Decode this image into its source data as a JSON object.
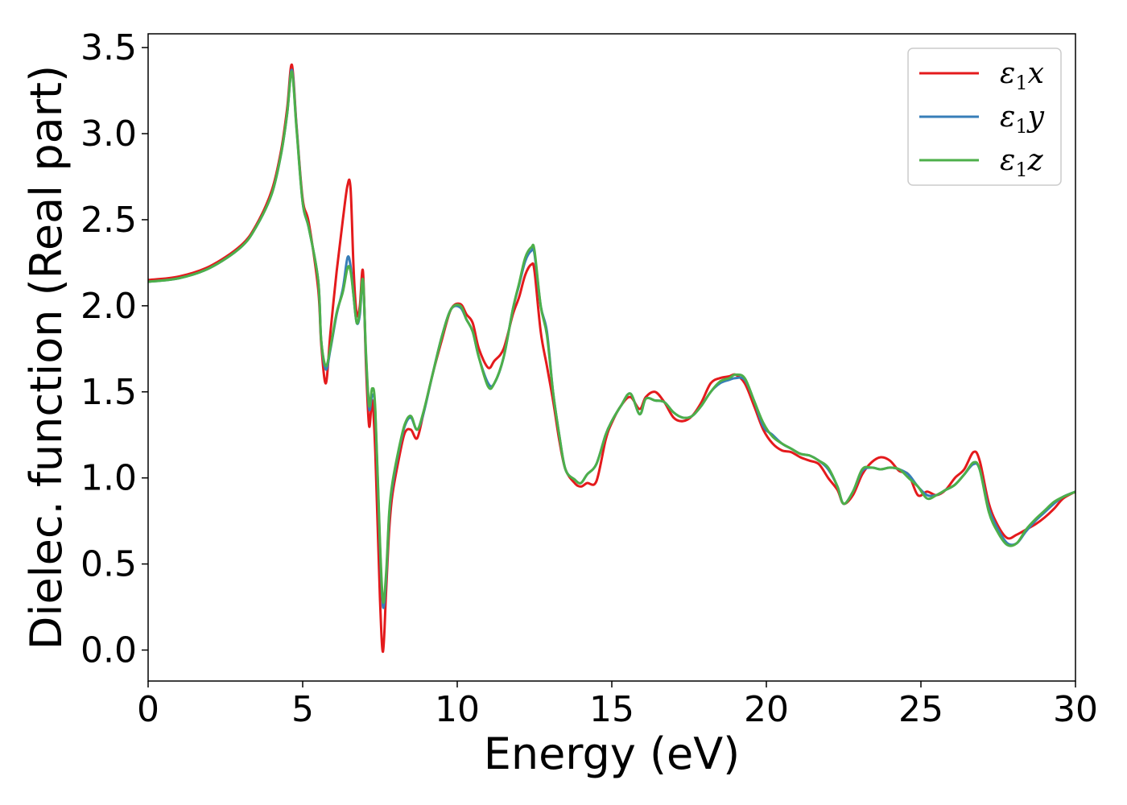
{
  "chart_data": {
    "type": "line",
    "xlabel": "Energy (eV)",
    "ylabel": "Dielec. function (Real part)",
    "xlim": [
      0,
      30
    ],
    "ylim": [
      -0.18,
      3.58
    ],
    "xticks": [
      0,
      5,
      10,
      15,
      20,
      25,
      30
    ],
    "xtick_labels": [
      "0",
      "5",
      "10",
      "15",
      "20",
      "25",
      "30"
    ],
    "yticks": [
      0.0,
      0.5,
      1.0,
      1.5,
      2.0,
      2.5,
      3.0,
      3.5
    ],
    "ytick_labels": [
      "0.0",
      "0.5",
      "1.0",
      "1.5",
      "2.0",
      "2.5",
      "3.0",
      "3.5"
    ],
    "grid": false,
    "legend_position": "top-right",
    "series": [
      {
        "name": "ε1x",
        "legend_base": "ε",
        "legend_sub": "1",
        "legend_tail": "x",
        "color": "#e41a1c",
        "x": [
          0,
          1,
          2,
          3,
          3.5,
          4,
          4.3,
          4.5,
          4.65,
          4.8,
          5,
          5.2,
          5.5,
          5.6,
          5.75,
          5.9,
          6.1,
          6.3,
          6.45,
          6.55,
          6.65,
          6.75,
          6.85,
          6.95,
          7.05,
          7.15,
          7.25,
          7.35,
          7.5,
          7.6,
          7.7,
          7.8,
          7.9,
          8.1,
          8.3,
          8.5,
          8.7,
          8.9,
          9.2,
          9.5,
          9.8,
          10.1,
          10.3,
          10.5,
          10.7,
          11.0,
          11.2,
          11.5,
          11.8,
          12.0,
          12.2,
          12.4,
          12.5,
          12.7,
          12.9,
          13.1,
          13.3,
          13.5,
          13.8,
          14.0,
          14.2,
          14.5,
          14.8,
          15.0,
          15.3,
          15.6,
          15.9,
          16.1,
          16.4,
          16.7,
          17.0,
          17.3,
          17.6,
          17.9,
          18.2,
          18.5,
          18.8,
          19.0,
          19.3,
          19.6,
          19.9,
          20.2,
          20.5,
          20.8,
          21.1,
          21.4,
          21.7,
          22.0,
          22.3,
          22.5,
          22.8,
          23.1,
          23.4,
          23.7,
          24.0,
          24.3,
          24.6,
          24.9,
          25.2,
          25.5,
          25.8,
          26.1,
          26.4,
          26.7,
          26.9,
          27.2,
          27.5,
          27.8,
          28.1,
          28.4,
          28.7,
          29.0,
          29.3,
          29.6,
          30.0
        ],
        "values": [
          2.15,
          2.17,
          2.23,
          2.35,
          2.47,
          2.67,
          2.9,
          3.15,
          3.4,
          3.05,
          2.62,
          2.48,
          2.1,
          1.78,
          1.55,
          1.85,
          2.2,
          2.5,
          2.7,
          2.68,
          2.2,
          1.95,
          2.0,
          2.2,
          1.65,
          1.3,
          1.45,
          1.15,
          0.3,
          -0.01,
          0.35,
          0.7,
          0.9,
          1.1,
          1.26,
          1.28,
          1.23,
          1.37,
          1.6,
          1.8,
          1.98,
          2.01,
          1.95,
          1.9,
          1.75,
          1.64,
          1.68,
          1.75,
          1.95,
          2.05,
          2.18,
          2.24,
          2.2,
          1.85,
          1.65,
          1.45,
          1.22,
          1.05,
          0.97,
          0.95,
          0.97,
          0.98,
          1.22,
          1.32,
          1.42,
          1.47,
          1.4,
          1.47,
          1.5,
          1.44,
          1.35,
          1.33,
          1.36,
          1.44,
          1.55,
          1.58,
          1.59,
          1.6,
          1.55,
          1.42,
          1.28,
          1.2,
          1.16,
          1.15,
          1.12,
          1.1,
          1.08,
          1.0,
          0.93,
          0.85,
          0.9,
          1.02,
          1.09,
          1.12,
          1.1,
          1.04,
          1.02,
          0.9,
          0.92,
          0.9,
          0.93,
          1.0,
          1.05,
          1.15,
          1.1,
          0.85,
          0.72,
          0.65,
          0.67,
          0.7,
          0.73,
          0.77,
          0.82,
          0.88,
          0.92
        ]
      },
      {
        "name": "ε1y",
        "legend_base": "ε",
        "legend_sub": "1",
        "legend_tail": "y",
        "color": "#377eb8",
        "x": [
          0,
          1,
          2,
          3,
          3.5,
          4,
          4.3,
          4.5,
          4.65,
          4.8,
          5,
          5.2,
          5.5,
          5.6,
          5.75,
          5.9,
          6.1,
          6.3,
          6.45,
          6.55,
          6.65,
          6.75,
          6.85,
          6.95,
          7.05,
          7.15,
          7.25,
          7.35,
          7.5,
          7.6,
          7.7,
          7.8,
          7.9,
          8.1,
          8.3,
          8.5,
          8.7,
          8.9,
          9.2,
          9.5,
          9.8,
          10.1,
          10.3,
          10.5,
          10.7,
          11.0,
          11.2,
          11.5,
          11.8,
          12.0,
          12.2,
          12.4,
          12.5,
          12.7,
          12.9,
          13.1,
          13.3,
          13.5,
          13.8,
          14.0,
          14.2,
          14.5,
          14.8,
          15.0,
          15.3,
          15.6,
          15.9,
          16.1,
          16.4,
          16.7,
          17.0,
          17.3,
          17.6,
          17.9,
          18.2,
          18.5,
          18.8,
          19.0,
          19.3,
          19.6,
          19.9,
          20.2,
          20.5,
          20.8,
          21.1,
          21.4,
          21.7,
          22.0,
          22.3,
          22.5,
          22.8,
          23.1,
          23.4,
          23.7,
          24.0,
          24.3,
          24.6,
          24.9,
          25.2,
          25.5,
          25.8,
          26.1,
          26.4,
          26.7,
          26.9,
          27.2,
          27.5,
          27.8,
          28.1,
          28.4,
          28.7,
          29.0,
          29.3,
          29.6,
          30.0
        ],
        "values": [
          2.14,
          2.16,
          2.22,
          2.34,
          2.46,
          2.65,
          2.88,
          3.12,
          3.37,
          3.04,
          2.6,
          2.45,
          2.15,
          1.8,
          1.63,
          1.75,
          1.95,
          2.1,
          2.28,
          2.23,
          2.05,
          1.9,
          1.95,
          2.15,
          1.7,
          1.4,
          1.48,
          1.38,
          0.6,
          0.25,
          0.42,
          0.78,
          0.95,
          1.15,
          1.3,
          1.35,
          1.28,
          1.37,
          1.6,
          1.82,
          1.98,
          1.99,
          1.92,
          1.85,
          1.7,
          1.55,
          1.55,
          1.7,
          1.98,
          2.12,
          2.26,
          2.32,
          2.3,
          2.0,
          1.85,
          1.5,
          1.25,
          1.05,
          0.99,
          0.97,
          1.02,
          1.08,
          1.25,
          1.33,
          1.42,
          1.49,
          1.37,
          1.46,
          1.45,
          1.44,
          1.38,
          1.35,
          1.36,
          1.42,
          1.5,
          1.55,
          1.57,
          1.58,
          1.57,
          1.45,
          1.3,
          1.25,
          1.2,
          1.17,
          1.14,
          1.13,
          1.1,
          1.05,
          0.95,
          0.85,
          0.92,
          1.04,
          1.06,
          1.05,
          1.06,
          1.05,
          1.02,
          0.95,
          0.9,
          0.9,
          0.93,
          0.96,
          1.02,
          1.08,
          1.05,
          0.82,
          0.7,
          0.62,
          0.62,
          0.69,
          0.75,
          0.8,
          0.85,
          0.89,
          0.92
        ]
      },
      {
        "name": "ε1z",
        "legend_base": "ε",
        "legend_sub": "1",
        "legend_tail": "z",
        "color": "#4daf4a",
        "x": [
          0,
          1,
          2,
          3,
          3.5,
          4,
          4.3,
          4.5,
          4.65,
          4.8,
          5,
          5.2,
          5.5,
          5.6,
          5.75,
          5.9,
          6.1,
          6.3,
          6.45,
          6.55,
          6.65,
          6.75,
          6.85,
          6.95,
          7.05,
          7.15,
          7.25,
          7.35,
          7.5,
          7.6,
          7.7,
          7.8,
          7.9,
          8.1,
          8.3,
          8.5,
          8.7,
          8.9,
          9.2,
          9.5,
          9.8,
          10.1,
          10.3,
          10.5,
          10.7,
          11.0,
          11.2,
          11.5,
          11.8,
          12.0,
          12.2,
          12.4,
          12.5,
          12.7,
          12.9,
          13.1,
          13.3,
          13.5,
          13.8,
          14.0,
          14.2,
          14.5,
          14.8,
          15.0,
          15.3,
          15.6,
          15.9,
          16.1,
          16.4,
          16.7,
          17.0,
          17.3,
          17.6,
          17.9,
          18.2,
          18.5,
          18.8,
          19.0,
          19.3,
          19.6,
          19.9,
          20.2,
          20.5,
          20.8,
          21.1,
          21.4,
          21.7,
          22.0,
          22.3,
          22.5,
          22.8,
          23.1,
          23.4,
          23.7,
          24.0,
          24.3,
          24.6,
          24.9,
          25.2,
          25.5,
          25.8,
          26.1,
          26.4,
          26.7,
          26.9,
          27.2,
          27.5,
          27.8,
          28.1,
          28.4,
          28.7,
          29.0,
          29.3,
          29.6,
          30.0
        ],
        "values": [
          2.14,
          2.16,
          2.22,
          2.34,
          2.46,
          2.65,
          2.88,
          3.12,
          3.36,
          3.03,
          2.6,
          2.45,
          2.15,
          1.8,
          1.65,
          1.76,
          1.96,
          2.08,
          2.22,
          2.2,
          2.05,
          1.9,
          1.97,
          2.15,
          1.72,
          1.42,
          1.52,
          1.4,
          0.63,
          0.28,
          0.45,
          0.8,
          0.97,
          1.16,
          1.31,
          1.36,
          1.28,
          1.38,
          1.6,
          1.82,
          1.98,
          2.0,
          1.92,
          1.85,
          1.7,
          1.53,
          1.55,
          1.7,
          1.98,
          2.13,
          2.28,
          2.34,
          2.32,
          2.0,
          1.83,
          1.5,
          1.25,
          1.05,
          0.99,
          0.97,
          1.02,
          1.08,
          1.25,
          1.33,
          1.42,
          1.49,
          1.37,
          1.46,
          1.45,
          1.44,
          1.38,
          1.35,
          1.36,
          1.42,
          1.5,
          1.56,
          1.58,
          1.6,
          1.58,
          1.45,
          1.32,
          1.24,
          1.2,
          1.17,
          1.14,
          1.13,
          1.1,
          1.06,
          0.95,
          0.85,
          0.92,
          1.05,
          1.06,
          1.05,
          1.06,
          1.05,
          1.0,
          0.95,
          0.88,
          0.9,
          0.93,
          0.96,
          1.02,
          1.09,
          1.05,
          0.8,
          0.68,
          0.61,
          0.62,
          0.7,
          0.76,
          0.81,
          0.86,
          0.89,
          0.92
        ]
      }
    ]
  }
}
